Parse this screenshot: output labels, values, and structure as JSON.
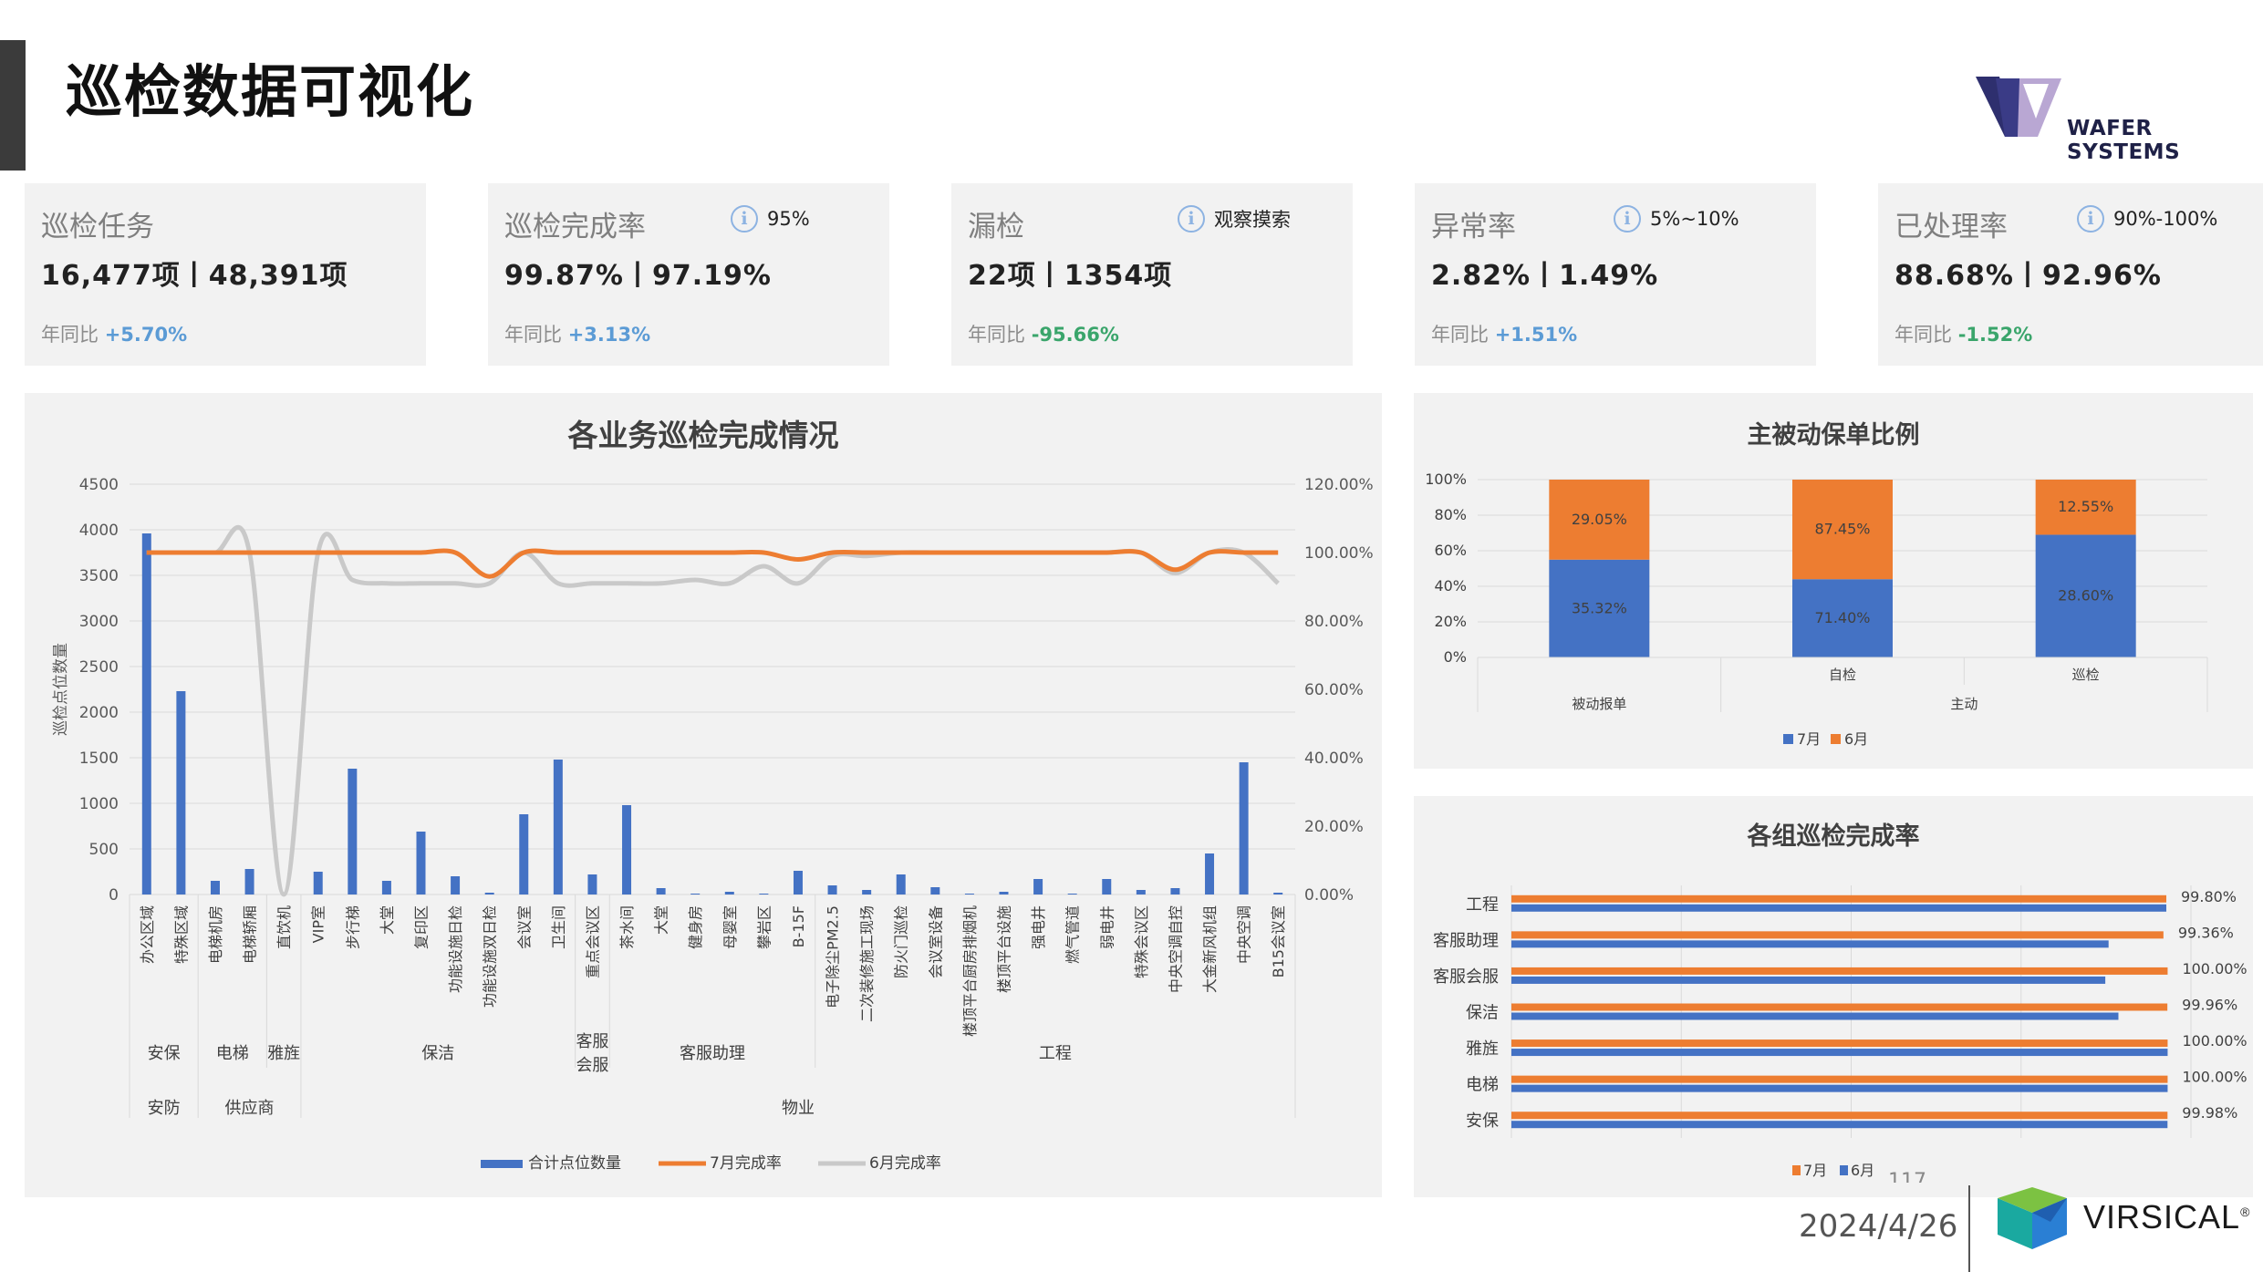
{
  "header": {
    "title": "巡检数据可视化",
    "logo_text": "WAFER SYSTEMS"
  },
  "kpis": [
    {
      "title": "巡检任务",
      "info": "",
      "value": "16,477项丨48,391项",
      "yoy_label": "年同比",
      "yoy_value": "+5.70%",
      "yoy_color": "#5b9bd5"
    },
    {
      "title": "巡检完成率",
      "info": "95%",
      "value": "99.87%丨97.19%",
      "yoy_label": "年同比",
      "yoy_value": "+3.13%",
      "yoy_color": "#5b9bd5"
    },
    {
      "title": "漏检",
      "info": "观察摸索",
      "value": "22项丨1354项",
      "yoy_label": "年同比",
      "yoy_value": "-95.66%",
      "yoy_color": "#3aa56b"
    },
    {
      "title": "异常率",
      "info": "5%~10%",
      "value": "2.82%丨1.49%",
      "yoy_label": "年同比",
      "yoy_value": "+1.51%",
      "yoy_color": "#5b9bd5"
    },
    {
      "title": "已处理率",
      "info": "90%-100%",
      "value": "88.68%丨92.96%",
      "yoy_label": "年同比",
      "yoy_value": "-1.52%",
      "yoy_color": "#3aa56b"
    }
  ],
  "chart_data": [
    {
      "type": "bar",
      "title": "各业务巡检完成情况",
      "ylabel": "巡检点位数量",
      "ylim": [
        0,
        4500
      ],
      "y_ticks": [
        "0",
        "500",
        "1000",
        "1500",
        "2000",
        "2500",
        "3000",
        "3500",
        "4000",
        "4500"
      ],
      "y2lim": [
        0,
        120
      ],
      "y2_ticks": [
        "0.00%",
        "20.00%",
        "40.00%",
        "60.00%",
        "80.00%",
        "100.00%",
        "120.00%"
      ],
      "categories": [
        "办公区域",
        "特殊区域",
        "电梯机房",
        "电梯轿厢",
        "直饮机",
        "VIP室",
        "步行梯",
        "大堂",
        "复印区",
        "功能设施日检",
        "功能设施双日检",
        "会议室",
        "卫生间",
        "重点会议区",
        "茶水间",
        "大堂",
        "健身房",
        "母婴室",
        "攀岩区",
        "B-15F",
        "电子除尘PM2.5",
        "二次装修施工现场",
        "防火门巡检",
        "会议室设备",
        "楼顶平台厨房排烟机",
        "楼顶平台设施",
        "强电井",
        "燃气管道",
        "弱电井",
        "特殊会议区",
        "中央空调自控",
        "大金新风机组",
        "中央空调",
        "B15会议室"
      ],
      "groups_level1": [
        {
          "name": "安保",
          "span": 2
        },
        {
          "name": "电梯",
          "span": 2
        },
        {
          "name": "雅旌",
          "span": 1
        },
        {
          "name": "保洁",
          "span": 8
        },
        {
          "name": "客服会服",
          "span": 1
        },
        {
          "name": "客服助理",
          "span": 6
        },
        {
          "name": "工程",
          "span": 14
        }
      ],
      "groups_level2": [
        {
          "name": "安防",
          "span": 2
        },
        {
          "name": "供应商",
          "span": 3
        },
        {
          "name": "物业",
          "span": 29
        }
      ],
      "series": [
        {
          "name": "合计点位数量",
          "kind": "bar",
          "axis": "left",
          "color": "#4472c4",
          "values": [
            3960,
            2230,
            150,
            280,
            0,
            250,
            1380,
            150,
            690,
            200,
            20,
            880,
            1480,
            220,
            980,
            70,
            10,
            30,
            10,
            260,
            100,
            50,
            220,
            80,
            10,
            30,
            170,
            10,
            170,
            50,
            70,
            450,
            1450,
            20
          ]
        },
        {
          "name": "7月完成率",
          "kind": "line",
          "axis": "right",
          "color": "#ed7d31",
          "values": [
            100,
            100,
            100,
            100,
            100,
            100,
            100,
            100,
            100,
            100,
            93,
            100,
            100,
            100,
            100,
            100,
            100,
            100,
            100,
            98,
            100,
            100,
            100,
            100,
            100,
            100,
            100,
            100,
            100,
            100,
            95,
            100,
            100,
            100
          ]
        },
        {
          "name": "6月完成率",
          "kind": "line",
          "axis": "right",
          "color": "#c9c9c9",
          "values": [
            100,
            100,
            100,
            100,
            0,
            100,
            92,
            91,
            91,
            91,
            91,
            100,
            91,
            91,
            91,
            91,
            92,
            91,
            96,
            91,
            99,
            99,
            100,
            100,
            100,
            100,
            100,
            100,
            100,
            100,
            94,
            100,
            100,
            91
          ]
        }
      ],
      "legend": "bottom"
    },
    {
      "type": "bar",
      "title": "主被动保单比例",
      "stacked": true,
      "ylim": [
        0,
        100
      ],
      "y_ticks": [
        "0%",
        "20%",
        "40%",
        "60%",
        "80%",
        "100%"
      ],
      "categories": [
        "被动报单",
        "自检",
        "巡检"
      ],
      "group_labels": [
        {
          "name": "被动报单",
          "span": 1
        },
        {
          "name": "主动",
          "span": 2
        }
      ],
      "category_labels": [
        "",
        "自检",
        "巡检"
      ],
      "series": [
        {
          "name": "7月",
          "color": "#4472c4",
          "values": [
            55,
            44,
            69
          ],
          "labels": [
            "35.32%",
            "71.40%",
            "28.60%"
          ]
        },
        {
          "name": "6月",
          "color": "#ed7d31",
          "values": [
            45,
            56,
            31
          ],
          "labels": [
            "29.05%",
            "87.45%",
            "12.55%"
          ]
        }
      ],
      "legend": "bottom"
    },
    {
      "type": "bar",
      "orientation": "horizontal",
      "title": "各组巡检完成率",
      "categories": [
        "工程",
        "客服助理",
        "客服会服",
        "保洁",
        "雅旌",
        "电梯",
        "安保"
      ],
      "series": [
        {
          "name": "7月",
          "color": "#ed7d31",
          "values": [
            99.8,
            99.36,
            100.0,
            99.96,
            100.0,
            100.0,
            99.98
          ]
        },
        {
          "name": "6月",
          "color": "#4472c4",
          "values": [
            99.8,
            91.0,
            90.5,
            92.5,
            100.0,
            100.0,
            99.98
          ]
        }
      ],
      "labels": [
        "99.80%",
        "99.36%",
        "100.00%",
        "99.96%",
        "100.00%",
        "100.00%",
        "99.98%"
      ],
      "legend": "bottom"
    }
  ],
  "footer": {
    "date": "2024/4/26",
    "page": "117",
    "brand": "VIRSICAL",
    "brand_mark": "®"
  }
}
